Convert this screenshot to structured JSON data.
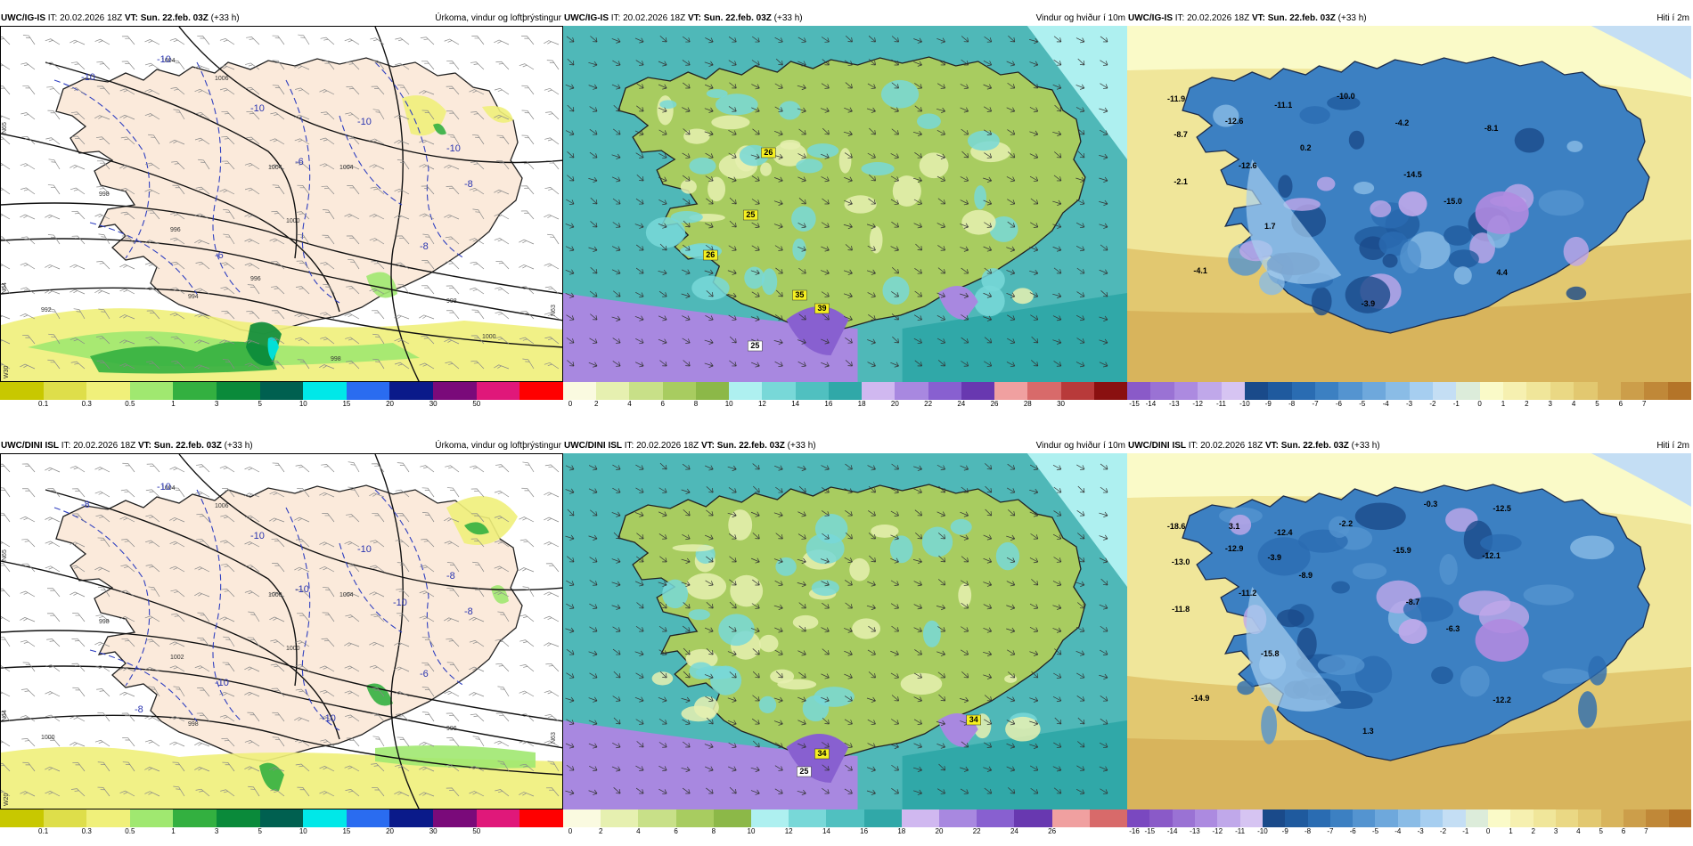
{
  "rows": [
    {
      "model": "UWC/IG-IS",
      "panels": [
        {
          "id": "precip",
          "model": "UWC/IG-IS",
          "it_label": "IT:",
          "it": "20.02.2026 18Z",
          "vt_label": "VT:",
          "vt": "Sun. 22.feb. 03Z",
          "lead": "(+33 h)",
          "title": "Úrkoma, vindur og loftþrýstingur",
          "isobars": [
            "1004",
            "1006",
            "1004",
            "998",
            "996",
            "1000",
            "1004",
            "998",
            "994",
            "992",
            "996",
            "998",
            "1000"
          ],
          "temps": [
            "-10",
            "-10",
            "-10",
            "-10",
            "-10",
            "-8",
            "-6",
            "-6",
            "-8"
          ],
          "side_labels": [
            "N65",
            "N64",
            "W30",
            "N63"
          ],
          "colorbar": {
            "ticks": [
              "0.1",
              "0.3",
              "0.5",
              "1",
              "3",
              "5",
              "10",
              "15",
              "20",
              "30",
              "50"
            ],
            "colors": [
              "#c8c800",
              "#dede4a",
              "#f0f07a",
              "#a0e870",
              "#33b040",
              "#0a8a3a",
              "#006050",
              "#00e8e8",
              "#2a6cf0",
              "#0a1a8a",
              "#7a0a7a",
              "#e0187a",
              "#ff0000"
            ]
          }
        },
        {
          "id": "wind",
          "model": "UWC/IG-IS",
          "it_label": "IT:",
          "it": "20.02.2026 18Z",
          "vt_label": "VT:",
          "vt": "Sun. 22.feb. 03Z",
          "lead": "(+33 h)",
          "title": "Vindur og hviður í 10m",
          "gusts": [
            "26",
            "25",
            "26",
            "35",
            "39",
            "25"
          ],
          "colorbar": {
            "ticks": [
              "0",
              "2",
              "4",
              "6",
              "8",
              "10",
              "12",
              "14",
              "16",
              "18",
              "20",
              "22",
              "24",
              "26",
              "28",
              "30"
            ],
            "colors": [
              "#fafae0",
              "#e6f0b0",
              "#c8e088",
              "#a8cc60",
              "#8cb848",
              "#aef0f0",
              "#78d8d8",
              "#50c0c0",
              "#30a8a8",
              "#d0b8f0",
              "#a888e0",
              "#8860d0",
              "#6838b0",
              "#f0a0a0",
              "#d86a6a",
              "#b83a3a",
              "#8a1010"
            ]
          }
        },
        {
          "id": "temp",
          "model": "UWC/IG-IS",
          "it_label": "IT:",
          "it": "20.02.2026 18Z",
          "vt_label": "VT:",
          "vt": "Sun. 22.feb. 03Z",
          "lead": "(+33 h)",
          "title": "Hiti í 2m",
          "values": [
            "-11.9",
            "-12.6",
            "-8.7",
            "-11.1",
            "-10.0",
            "-4.2",
            "-8.1",
            "0.2",
            "-12.6",
            "-2.1",
            "-14.5",
            "-15.0",
            "1.7",
            "-4.1",
            "4.4",
            "-3.9"
          ],
          "colorbar": {
            "ticks": [
              "-15",
              "-14",
              "-13",
              "-12",
              "-11",
              "-10",
              "-9",
              "-8",
              "-7",
              "-6",
              "-5",
              "-4",
              "-3",
              "-2",
              "-1",
              "0",
              "1",
              "2",
              "3",
              "4",
              "5",
              "6",
              "7"
            ],
            "colors": [
              "#8a5ac8",
              "#9a72d4",
              "#ac8ae0",
              "#c0a8ea",
              "#d6c4f2",
              "#1a4a8a",
              "#1f5a9e",
              "#2a6cb2",
              "#3c80c2",
              "#5494d0",
              "#6ea8dc",
              "#8abce6",
              "#a6cef0",
              "#c4def4",
              "#dcecda",
              "#fafac8",
              "#f6f0b0",
              "#f0e69a",
              "#ead884",
              "#e2c870",
              "#d8b45c",
              "#cc9e4a",
              "#c08838",
              "#b47428"
            ]
          }
        }
      ]
    },
    {
      "model": "UWC/DINI ISL",
      "panels": [
        {
          "id": "precip",
          "model": "UWC/DINI ISL",
          "it_label": "IT:",
          "it": "20.02.2026 18Z",
          "vt_label": "VT:",
          "vt": "Sun. 22.feb. 03Z",
          "lead": "(+33 h)",
          "title": "Úrkoma, vindur og loftþrýstingur",
          "isobars": [
            "1004",
            "1006",
            "1000",
            "998",
            "1002",
            "1000",
            "1004",
            "996",
            "998",
            "1000"
          ],
          "temps": [
            "-10",
            "-8",
            "-10",
            "-10",
            "-8",
            "-8",
            "-10",
            "-10",
            "-6",
            "-8",
            "-10",
            "-10"
          ],
          "side_labels": [
            "N65",
            "N64",
            "W20",
            "N63"
          ],
          "colorbar": {
            "ticks": [
              "0.1",
              "0.3",
              "0.5",
              "1",
              "3",
              "5",
              "10",
              "15",
              "20",
              "30",
              "50"
            ],
            "colors": [
              "#c8c800",
              "#dede4a",
              "#f0f07a",
              "#a0e870",
              "#33b040",
              "#0a8a3a",
              "#006050",
              "#00e8e8",
              "#2a6cf0",
              "#0a1a8a",
              "#7a0a7a",
              "#e0187a",
              "#ff0000"
            ]
          }
        },
        {
          "id": "wind",
          "model": "UWC/DINI ISL",
          "it_label": "IT:",
          "it": "20.02.2026 18Z",
          "vt_label": "VT:",
          "vt": "Sun. 22.feb. 03Z",
          "lead": "(+33 h)",
          "title": "Vindur og hviður í 10m",
          "gusts": [
            "34",
            "34",
            "25"
          ],
          "colorbar": {
            "ticks": [
              "0",
              "2",
              "4",
              "6",
              "8",
              "10",
              "12",
              "14",
              "16",
              "18",
              "20",
              "22",
              "24",
              "26"
            ],
            "colors": [
              "#fafae0",
              "#e6f0b0",
              "#c8e088",
              "#a8cc60",
              "#8cb848",
              "#aef0f0",
              "#78d8d8",
              "#50c0c0",
              "#30a8a8",
              "#d0b8f0",
              "#a888e0",
              "#8860d0",
              "#6838b0",
              "#f0a0a0",
              "#d86a6a"
            ]
          }
        },
        {
          "id": "temp",
          "model": "UWC/DINI ISL",
          "it_label": "IT:",
          "it": "20.02.2026 18Z",
          "vt_label": "VT:",
          "vt": "Sun. 22.feb. 03Z",
          "lead": "(+33 h)",
          "title": "Hiti í 2m",
          "values": [
            "-18.6",
            "-12.9",
            "-13.0",
            "-12.4",
            "-2.2",
            "-15.9",
            "-12.1",
            "-8.9",
            "-11.2",
            "-11.8",
            "-8.7",
            "-6.3",
            "-15.8",
            "-14.9",
            "-12.2",
            "1.3",
            "-0.3",
            "-12.5",
            "3.1",
            "-3.9"
          ],
          "colorbar": {
            "ticks": [
              "-16",
              "-15",
              "-14",
              "-13",
              "-12",
              "-11",
              "-10",
              "-9",
              "-8",
              "-7",
              "-6",
              "-5",
              "-4",
              "-3",
              "-2",
              "-1",
              "0",
              "1",
              "2",
              "3",
              "4",
              "5",
              "6",
              "7"
            ],
            "colors": [
              "#7a48c0",
              "#8a5ac8",
              "#9a72d4",
              "#ac8ae0",
              "#c0a8ea",
              "#d6c4f2",
              "#1a4a8a",
              "#1f5a9e",
              "#2a6cb2",
              "#3c80c2",
              "#5494d0",
              "#6ea8dc",
              "#8abce6",
              "#a6cef0",
              "#c4def4",
              "#dcecda",
              "#fafac8",
              "#f6f0b0",
              "#f0e69a",
              "#ead884",
              "#e2c870",
              "#d8b45c",
              "#cc9e4a",
              "#c08838",
              "#b47428"
            ]
          }
        }
      ]
    }
  ]
}
